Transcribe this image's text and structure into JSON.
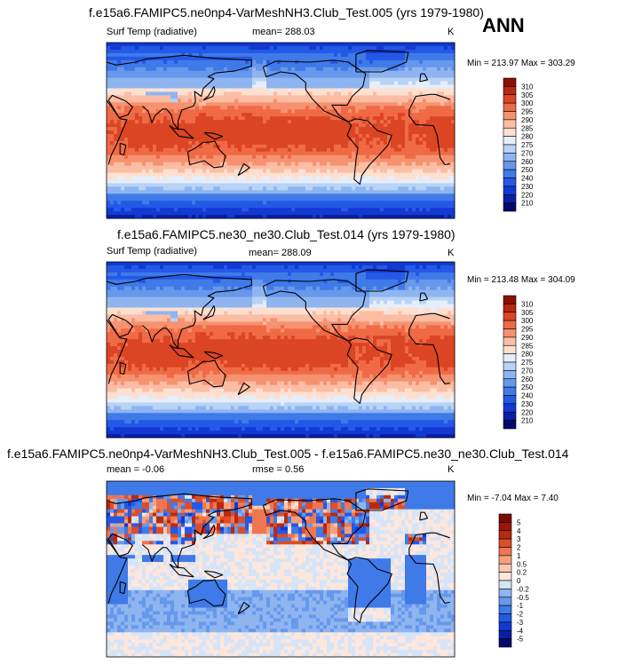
{
  "season": "ANN",
  "panels": [
    {
      "title": "f.e15a6.FAMIPC5.ne0np4-VarMeshNH3.Club_Test.005 (yrs 1979-1980)",
      "left_label": "Surf Temp (radiative)",
      "center_label": "mean= 288.03",
      "right_label": "K",
      "minmax": "Min = 213.97 Max = 303.29",
      "colorbar_labels": [
        "310",
        "305",
        "300",
        "295",
        "290",
        "285",
        "280",
        "275",
        "270",
        "260",
        "250",
        "240",
        "230",
        "220",
        "210"
      ]
    },
    {
      "title": "f.e15a6.FAMIPC5.ne30_ne30.Club_Test.014 (yrs 1979-1980)",
      "left_label": "Surf Temp (radiative)",
      "center_label": "mean= 288.09",
      "right_label": "K",
      "minmax": "Min = 213.48 Max = 304.09",
      "colorbar_labels": [
        "310",
        "305",
        "300",
        "295",
        "290",
        "285",
        "280",
        "275",
        "270",
        "260",
        "250",
        "240",
        "230",
        "220",
        "210"
      ]
    },
    {
      "title": "f.e15a6.FAMIPC5.ne0np4-VarMeshNH3.Club_Test.005 - f.e15a6.FAMIPC5.ne30_ne30.Club_Test.014",
      "left_label": "mean =  -0.06",
      "center_label": "rmse =   0.56",
      "right_label": "K",
      "minmax": "Min =  -7.04 Max =   7.40",
      "colorbar_labels": [
        "5",
        "4",
        "3",
        "2",
        "1",
        "0.5",
        "0.2",
        "0",
        "-0.2",
        "-0.5",
        "-1",
        "-2",
        "-3",
        "-4",
        "-5"
      ]
    }
  ],
  "chart_data": [
    {
      "type": "heatmap",
      "title": "f.e15a6.FAMIPC5.ne0np4-VarMeshNH3.Club_Test.005 (yrs 1979-1980)",
      "variable": "Surf Temp (radiative)",
      "units": "K",
      "mean": 288.03,
      "min": 213.97,
      "max": 303.29,
      "levels": [
        210,
        220,
        230,
        240,
        250,
        260,
        270,
        275,
        280,
        285,
        290,
        295,
        300,
        305,
        310
      ],
      "colors": [
        "#05086b",
        "#0a1fa6",
        "#1239d4",
        "#2458e6",
        "#3f7ae8",
        "#6698ec",
        "#8fb5f0",
        "#b9d3f6",
        "#e5eefb",
        "#fde0d0",
        "#fbbda4",
        "#f69270",
        "#ef6a45",
        "#dc4523",
        "#b8290e",
        "#8c1005"
      ]
    },
    {
      "type": "heatmap",
      "title": "f.e15a6.FAMIPC5.ne30_ne30.Club_Test.014 (yrs 1979-1980)",
      "variable": "Surf Temp (radiative)",
      "units": "K",
      "mean": 288.09,
      "min": 213.48,
      "max": 304.09,
      "levels": [
        210,
        220,
        230,
        240,
        250,
        260,
        270,
        275,
        280,
        285,
        290,
        295,
        300,
        305,
        310
      ],
      "colors": [
        "#05086b",
        "#0a1fa6",
        "#1239d4",
        "#2458e6",
        "#3f7ae8",
        "#6698ec",
        "#8fb5f0",
        "#b9d3f6",
        "#e5eefb",
        "#fde0d0",
        "#fbbda4",
        "#f69270",
        "#ef6a45",
        "#dc4523",
        "#b8290e",
        "#8c1005"
      ]
    },
    {
      "type": "heatmap",
      "title": "f.e15a6.FAMIPC5.ne0np4-VarMeshNH3.Club_Test.005 - f.e15a6.FAMIPC5.ne30_ne30.Club_Test.014",
      "units": "K",
      "mean": -0.06,
      "rmse": 0.56,
      "min": -7.04,
      "max": 7.4,
      "levels": [
        -5,
        -4,
        -3,
        -2,
        -1,
        -0.5,
        -0.2,
        0,
        0.2,
        0.5,
        1,
        2,
        3,
        4,
        5
      ],
      "colors": [
        "#05086b",
        "#0a1fa6",
        "#1239d4",
        "#2458e6",
        "#3f7ae8",
        "#6698ec",
        "#8fb5f0",
        "#d6e4f8",
        "#fde7dc",
        "#fbc8b0",
        "#f6a07e",
        "#ef7650",
        "#dc4e28",
        "#b8290e",
        "#9a160a",
        "#7a0a04"
      ]
    }
  ]
}
